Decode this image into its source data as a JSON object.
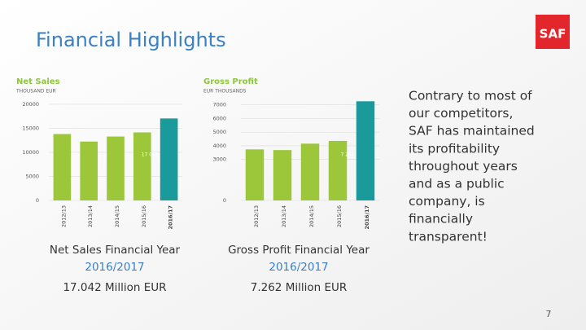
{
  "title": "Financial Highlights",
  "logo": "SAF",
  "chart_data": [
    {
      "type": "bar",
      "title": "Net Sales",
      "subtitle": "THOUSAND EUR",
      "categories": [
        "2012/13",
        "2013/14",
        "2014/15",
        "2015/16",
        "2016/17"
      ],
      "values": [
        13800,
        12240,
        13280,
        14140,
        17042
      ],
      "value_labels": [
        null,
        null,
        null,
        null,
        "17 042"
      ],
      "colors": [
        "#9dc73a",
        "#9dc73a",
        "#9dc73a",
        "#9dc73a",
        "#1b9a9b"
      ],
      "ylim": [
        0,
        21000
      ],
      "yticks": [
        0,
        5000,
        10000,
        15000,
        20000
      ],
      "grid": true
    },
    {
      "type": "bar",
      "title": "Gross Profit",
      "subtitle": "EUR THOUSANDS",
      "categories": [
        "2012/13",
        "2013/14",
        "2014/15",
        "2015/16",
        "2016/17"
      ],
      "values": [
        3740,
        3690,
        4160,
        4360,
        7262
      ],
      "value_labels": [
        null,
        null,
        null,
        null,
        "7 262"
      ],
      "colors": [
        "#9dc73a",
        "#9dc73a",
        "#9dc73a",
        "#9dc73a",
        "#1b9a9b"
      ],
      "ylim": [
        0,
        7400
      ],
      "yticks": [
        0,
        3000,
        4000,
        5000,
        6000,
        7000
      ],
      "grid": true
    }
  ],
  "captions": [
    {
      "label": "Net Sales Financial Year",
      "year": "2016/2017",
      "amount": "17.042 Million EUR"
    },
    {
      "label": "Gross Profit Financial Year",
      "year": "2016/2017",
      "amount": "7.262 Million EUR"
    }
  ],
  "paragraph": [
    "Contrary to most of",
    "our competitors,",
    "SAF has maintained",
    "its profitability",
    "throughout years",
    "and as a public",
    "company, is",
    "financially",
    "transparent!"
  ],
  "page_number": "7"
}
